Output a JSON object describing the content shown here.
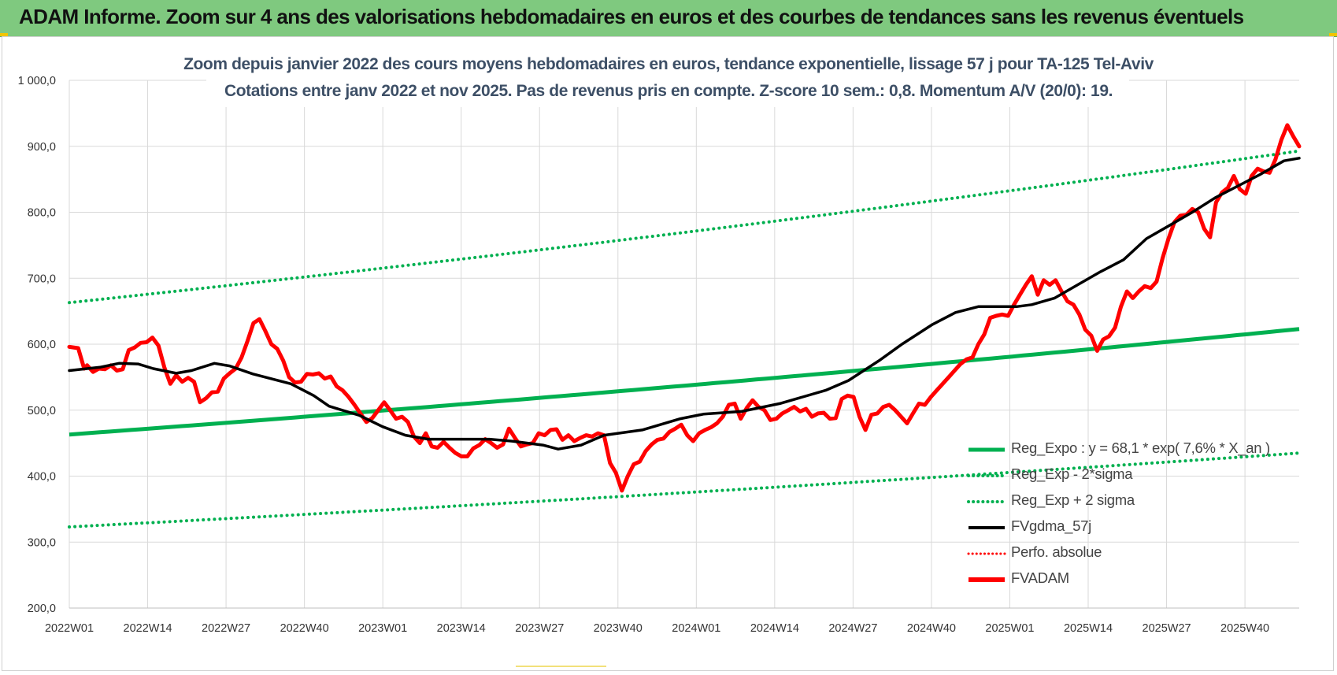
{
  "banner": {
    "title": "ADAM Informe. Zoom sur 4 ans des valorisations hebdomadaires en euros et des courbes de tendances sans les revenus éventuels"
  },
  "chart_data": {
    "type": "line",
    "title_line1": "Zoom depuis janvier 2022 des cours moyens hebdomadaires en euros, tendance exponentielle, lissage 57 j pour TA-125 Tel-Aviv",
    "title_line2": "Cotations entre janv 2022 et nov 2025. Pas de revenus pris en compte. Z-score 10 sem.: 0,8. Momentum A/V (20/0): 19.",
    "ylim": [
      200,
      1000
    ],
    "yticks": [
      "200,0",
      "300,0",
      "400,0",
      "500,0",
      "600,0",
      "700,0",
      "800,0",
      "900,0",
      "1 000,0"
    ],
    "ytick_values": [
      200,
      300,
      400,
      500,
      600,
      700,
      800,
      900,
      1000
    ],
    "xticks": [
      "2022W01",
      "2022W14",
      "2022W27",
      "2022W40",
      "2023W01",
      "2023W14",
      "2023W27",
      "2023W40",
      "2024W01",
      "2024W14",
      "2024W27",
      "2024W40",
      "2025W01",
      "2025W14",
      "2025W27",
      "2025W40"
    ],
    "x_tick_step_weeks": 13,
    "n_weeks": 205,
    "grid": true,
    "legend_position": "bottom-right",
    "series": [
      {
        "name": "Reg_Expo : y = 68,1 * exp( 7,6% * X_an )",
        "color": "#00b050",
        "style": "solid",
        "start": 463,
        "end": 623
      },
      {
        "name": "Reg_Exp - 2*sigma",
        "color": "#00b050",
        "style": "dotted",
        "start": 323,
        "end": 435
      },
      {
        "name": "Reg_Exp + 2 sigma",
        "color": "#00b050",
        "style": "dotted",
        "start": 663,
        "end": 893
      },
      {
        "name": "FVgdma_57j",
        "color": "#000000",
        "style": "solid",
        "keypoints": [
          [
            0,
            560
          ],
          [
            8,
            565
          ],
          [
            13,
            571
          ],
          [
            18,
            570
          ],
          [
            22,
            563
          ],
          [
            28,
            556
          ],
          [
            32,
            560
          ],
          [
            38,
            571
          ],
          [
            42,
            567
          ],
          [
            48,
            555
          ],
          [
            58,
            540
          ],
          [
            64,
            522
          ],
          [
            68,
            506
          ],
          [
            76,
            492
          ],
          [
            82,
            475
          ],
          [
            88,
            462
          ],
          [
            94,
            456
          ],
          [
            100,
            456
          ],
          [
            110,
            456
          ],
          [
            116,
            453
          ],
          [
            124,
            447
          ],
          [
            128,
            441
          ],
          [
            134,
            447
          ],
          [
            140,
            462
          ],
          [
            150,
            470
          ],
          [
            160,
            487
          ],
          [
            166,
            494
          ],
          [
            176,
            498
          ],
          [
            186,
            510
          ],
          [
            192,
            520
          ],
          [
            198,
            530
          ],
          [
            204,
            545
          ],
          [
            212,
            575
          ],
          [
            218,
            600
          ],
          [
            226,
            630
          ],
          [
            232,
            648
          ],
          [
            238,
            657
          ],
          [
            248,
            657
          ],
          [
            252,
            660
          ],
          [
            258,
            670
          ],
          [
            264,
            690
          ],
          [
            270,
            710
          ],
          [
            276,
            728
          ],
          [
            282,
            760
          ],
          [
            288,
            780
          ],
          [
            294,
            800
          ],
          [
            300,
            822
          ],
          [
            306,
            840
          ],
          [
            312,
            858
          ],
          [
            318,
            878
          ],
          [
            322,
            882
          ]
        ]
      },
      {
        "name": "Perfo. absolue",
        "color": "#ff0000",
        "style": "dotted"
      },
      {
        "name": "FVADAM",
        "color": "#ff0000",
        "style": "solid",
        "keypoints": [
          [
            0,
            596
          ],
          [
            3,
            594
          ],
          [
            5,
            563
          ],
          [
            6,
            568
          ],
          [
            8,
            558
          ],
          [
            10,
            563
          ],
          [
            12,
            562
          ],
          [
            14,
            568
          ],
          [
            16,
            560
          ],
          [
            18,
            562
          ],
          [
            20,
            591
          ],
          [
            22,
            595
          ],
          [
            24,
            602
          ],
          [
            26,
            603
          ],
          [
            28,
            610
          ],
          [
            30,
            598
          ],
          [
            32,
            565
          ],
          [
            34,
            540
          ],
          [
            36,
            553
          ],
          [
            38,
            543
          ],
          [
            40,
            549
          ],
          [
            42,
            543
          ],
          [
            44,
            512
          ],
          [
            46,
            518
          ],
          [
            48,
            527
          ],
          [
            50,
            528
          ],
          [
            52,
            548
          ],
          [
            54,
            556
          ],
          [
            56,
            563
          ],
          [
            58,
            580
          ],
          [
            60,
            605
          ],
          [
            62,
            632
          ],
          [
            64,
            638
          ],
          [
            66,
            620
          ],
          [
            68,
            600
          ],
          [
            70,
            593
          ],
          [
            72,
            575
          ],
          [
            74,
            550
          ],
          [
            76,
            542
          ],
          [
            78,
            543
          ],
          [
            80,
            555
          ],
          [
            82,
            554
          ],
          [
            84,
            556
          ],
          [
            86,
            548
          ],
          [
            88,
            551
          ],
          [
            90,
            536
          ],
          [
            92,
            530
          ],
          [
            94,
            520
          ],
          [
            96,
            508
          ],
          [
            98,
            495
          ],
          [
            100,
            482
          ],
          [
            102,
            488
          ],
          [
            104,
            500
          ],
          [
            106,
            512
          ],
          [
            108,
            500
          ],
          [
            110,
            487
          ],
          [
            112,
            490
          ],
          [
            114,
            482
          ],
          [
            116,
            460
          ],
          [
            118,
            450
          ],
          [
            120,
            465
          ],
          [
            122,
            445
          ],
          [
            124,
            443
          ],
          [
            126,
            452
          ],
          [
            128,
            443
          ],
          [
            130,
            435
          ],
          [
            132,
            430
          ],
          [
            134,
            430
          ],
          [
            136,
            442
          ],
          [
            138,
            447
          ],
          [
            140,
            456
          ],
          [
            142,
            450
          ],
          [
            144,
            443
          ],
          [
            146,
            448
          ],
          [
            148,
            472
          ],
          [
            150,
            458
          ],
          [
            152,
            445
          ],
          [
            154,
            448
          ],
          [
            156,
            450
          ],
          [
            158,
            465
          ],
          [
            160,
            462
          ],
          [
            162,
            470
          ],
          [
            164,
            471
          ],
          [
            166,
            455
          ],
          [
            168,
            462
          ],
          [
            170,
            453
          ],
          [
            172,
            458
          ],
          [
            174,
            462
          ],
          [
            176,
            460
          ],
          [
            178,
            465
          ],
          [
            180,
            462
          ],
          [
            182,
            420
          ],
          [
            184,
            405
          ],
          [
            186,
            378
          ],
          [
            188,
            400
          ],
          [
            190,
            418
          ],
          [
            192,
            422
          ],
          [
            194,
            438
          ],
          [
            196,
            448
          ],
          [
            198,
            455
          ],
          [
            200,
            457
          ],
          [
            202,
            467
          ],
          [
            204,
            472
          ],
          [
            206,
            478
          ],
          [
            208,
            462
          ],
          [
            210,
            453
          ],
          [
            212,
            465
          ],
          [
            214,
            470
          ],
          [
            216,
            474
          ],
          [
            218,
            480
          ],
          [
            220,
            490
          ],
          [
            222,
            508
          ],
          [
            224,
            510
          ],
          [
            226,
            487
          ],
          [
            228,
            503
          ],
          [
            230,
            515
          ],
          [
            232,
            505
          ],
          [
            234,
            500
          ],
          [
            236,
            485
          ],
          [
            238,
            487
          ],
          [
            240,
            495
          ],
          [
            242,
            500
          ],
          [
            244,
            505
          ],
          [
            246,
            498
          ],
          [
            248,
            502
          ],
          [
            250,
            490
          ],
          [
            252,
            495
          ],
          [
            254,
            496
          ],
          [
            256,
            487
          ],
          [
            258,
            488
          ],
          [
            260,
            517
          ],
          [
            262,
            522
          ],
          [
            264,
            520
          ],
          [
            266,
            490
          ],
          [
            268,
            470
          ],
          [
            270,
            493
          ],
          [
            272,
            495
          ],
          [
            274,
            505
          ],
          [
            276,
            508
          ],
          [
            278,
            500
          ],
          [
            280,
            490
          ],
          [
            282,
            480
          ],
          [
            284,
            495
          ],
          [
            286,
            510
          ],
          [
            288,
            508
          ],
          [
            290,
            520
          ],
          [
            292,
            530
          ],
          [
            294,
            540
          ],
          [
            296,
            550
          ],
          [
            298,
            560
          ],
          [
            300,
            570
          ],
          [
            302,
            577
          ],
          [
            304,
            580
          ],
          [
            306,
            600
          ],
          [
            308,
            615
          ],
          [
            310,
            640
          ],
          [
            312,
            643
          ],
          [
            314,
            645
          ],
          [
            316,
            643
          ],
          [
            318,
            660
          ],
          [
            320,
            675
          ],
          [
            322,
            690
          ],
          [
            324,
            703
          ],
          [
            326,
            675
          ],
          [
            328,
            697
          ],
          [
            330,
            690
          ],
          [
            332,
            697
          ],
          [
            334,
            680
          ],
          [
            336,
            665
          ],
          [
            338,
            660
          ],
          [
            340,
            645
          ],
          [
            342,
            622
          ],
          [
            344,
            613
          ],
          [
            346,
            590
          ],
          [
            348,
            607
          ],
          [
            350,
            612
          ],
          [
            352,
            625
          ],
          [
            354,
            657
          ],
          [
            356,
            680
          ],
          [
            358,
            670
          ],
          [
            360,
            680
          ],
          [
            362,
            688
          ],
          [
            364,
            685
          ],
          [
            366,
            695
          ],
          [
            368,
            730
          ],
          [
            370,
            760
          ],
          [
            372,
            785
          ],
          [
            374,
            795
          ],
          [
            376,
            796
          ],
          [
            378,
            805
          ],
          [
            380,
            800
          ],
          [
            382,
            775
          ],
          [
            384,
            762
          ],
          [
            386,
            815
          ],
          [
            388,
            830
          ],
          [
            390,
            837
          ],
          [
            392,
            855
          ],
          [
            394,
            835
          ],
          [
            396,
            828
          ],
          [
            398,
            855
          ],
          [
            400,
            866
          ],
          [
            402,
            862
          ],
          [
            404,
            860
          ],
          [
            406,
            880
          ],
          [
            408,
            910
          ],
          [
            410,
            932
          ],
          [
            412,
            915
          ],
          [
            414,
            900
          ]
        ]
      }
    ]
  }
}
